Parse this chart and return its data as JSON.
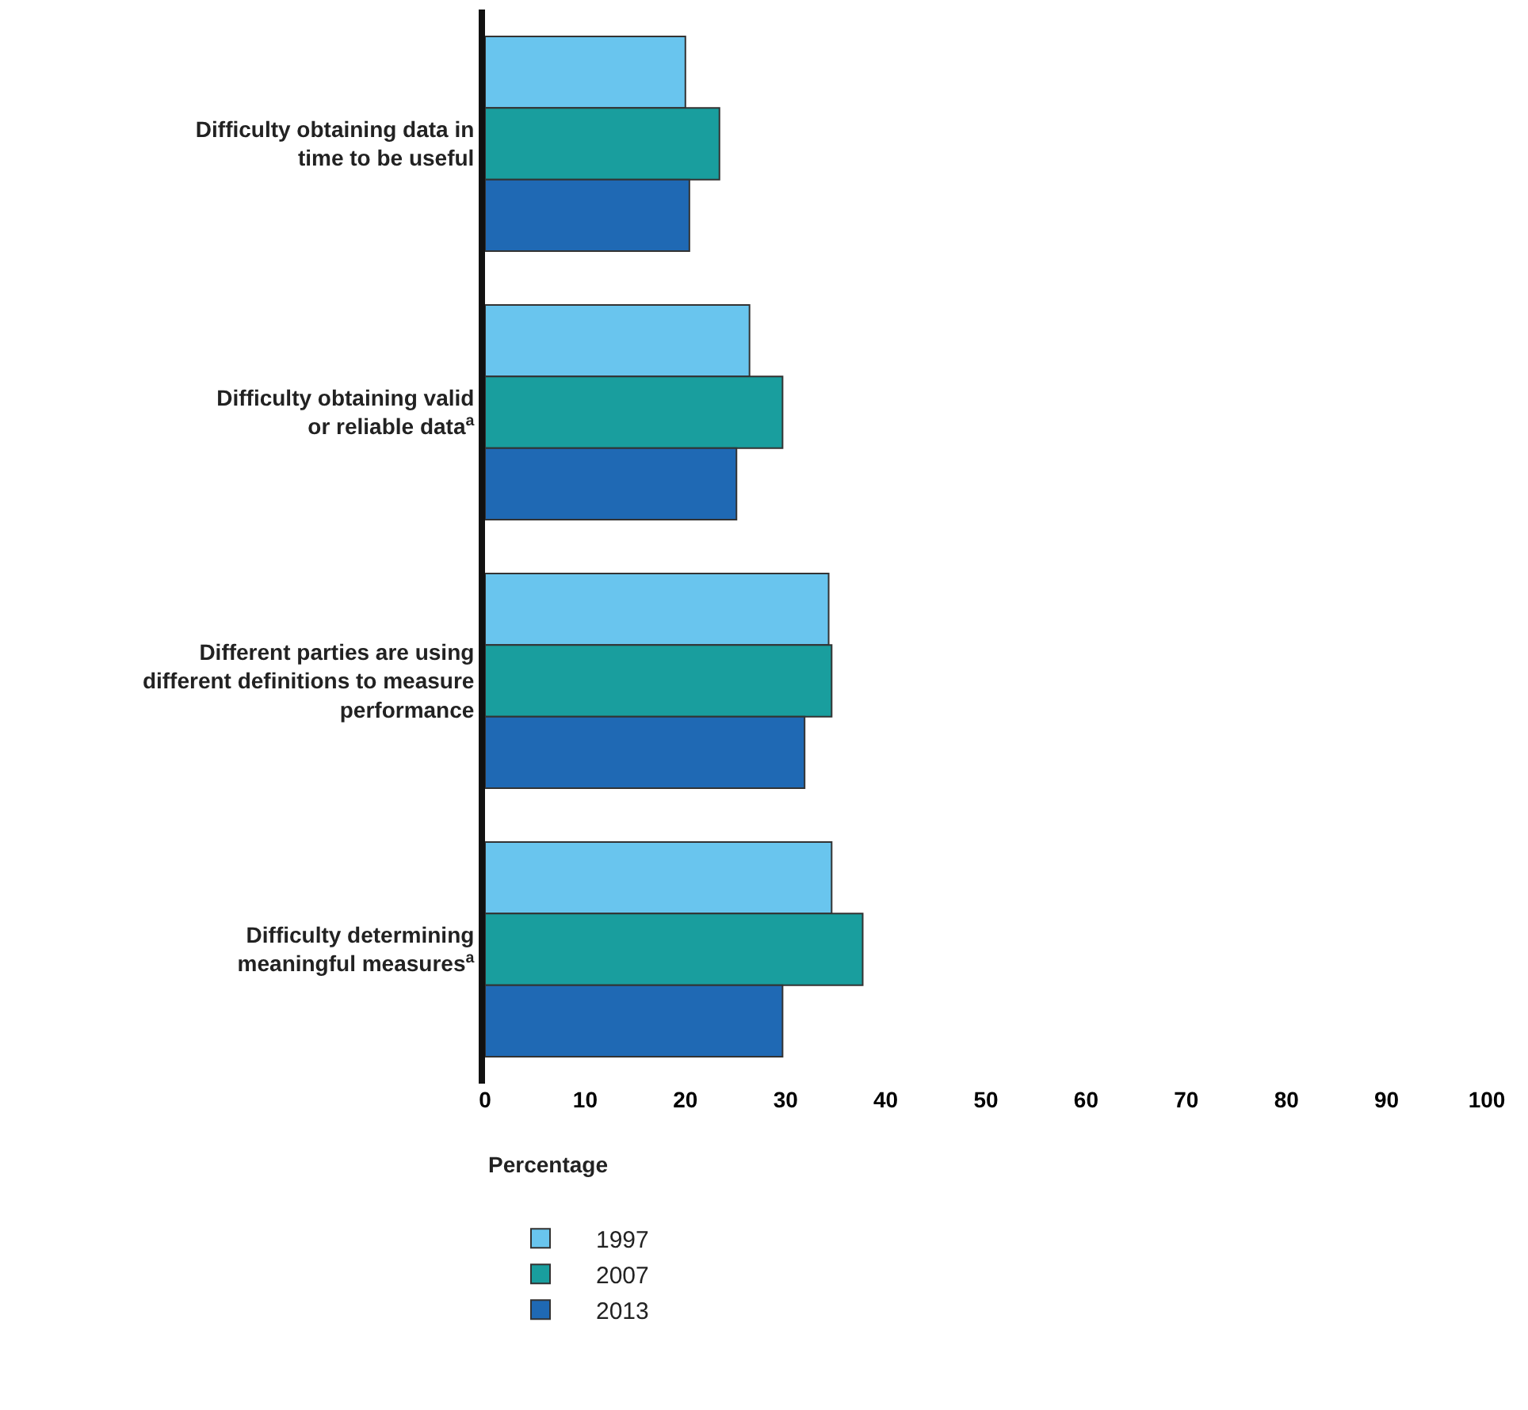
{
  "chart_data": {
    "type": "bar",
    "orientation": "horizontal",
    "xlabel": "Percentage",
    "categories": [
      "Difficulty obtaining data in\ntime to be useful",
      "Difficulty obtaining valid\nor reliable data$^{a}$",
      "Different parties are using\ndifferent definitions to measure\nperformance",
      "Difficulty determining\nmeaningful measures$^{a}$"
    ],
    "series": [
      {
        "name": "1997",
        "color": "#69c5ee",
        "values": [
          20,
          26.4,
          34.3,
          34.6
        ]
      },
      {
        "name": "2007",
        "color": "#199e9e",
        "values": [
          23.4,
          29.7,
          34.6,
          37.7
        ]
      },
      {
        "name": "2013",
        "color": "#1f69b4",
        "values": [
          20.4,
          25.1,
          31.9,
          29.7
        ]
      }
    ],
    "xlim": [
      0,
      100
    ],
    "xticks": [
      0,
      10,
      20,
      30,
      40,
      50,
      60,
      70,
      80,
      90,
      100
    ],
    "grid": false,
    "legend": "bottom"
  }
}
